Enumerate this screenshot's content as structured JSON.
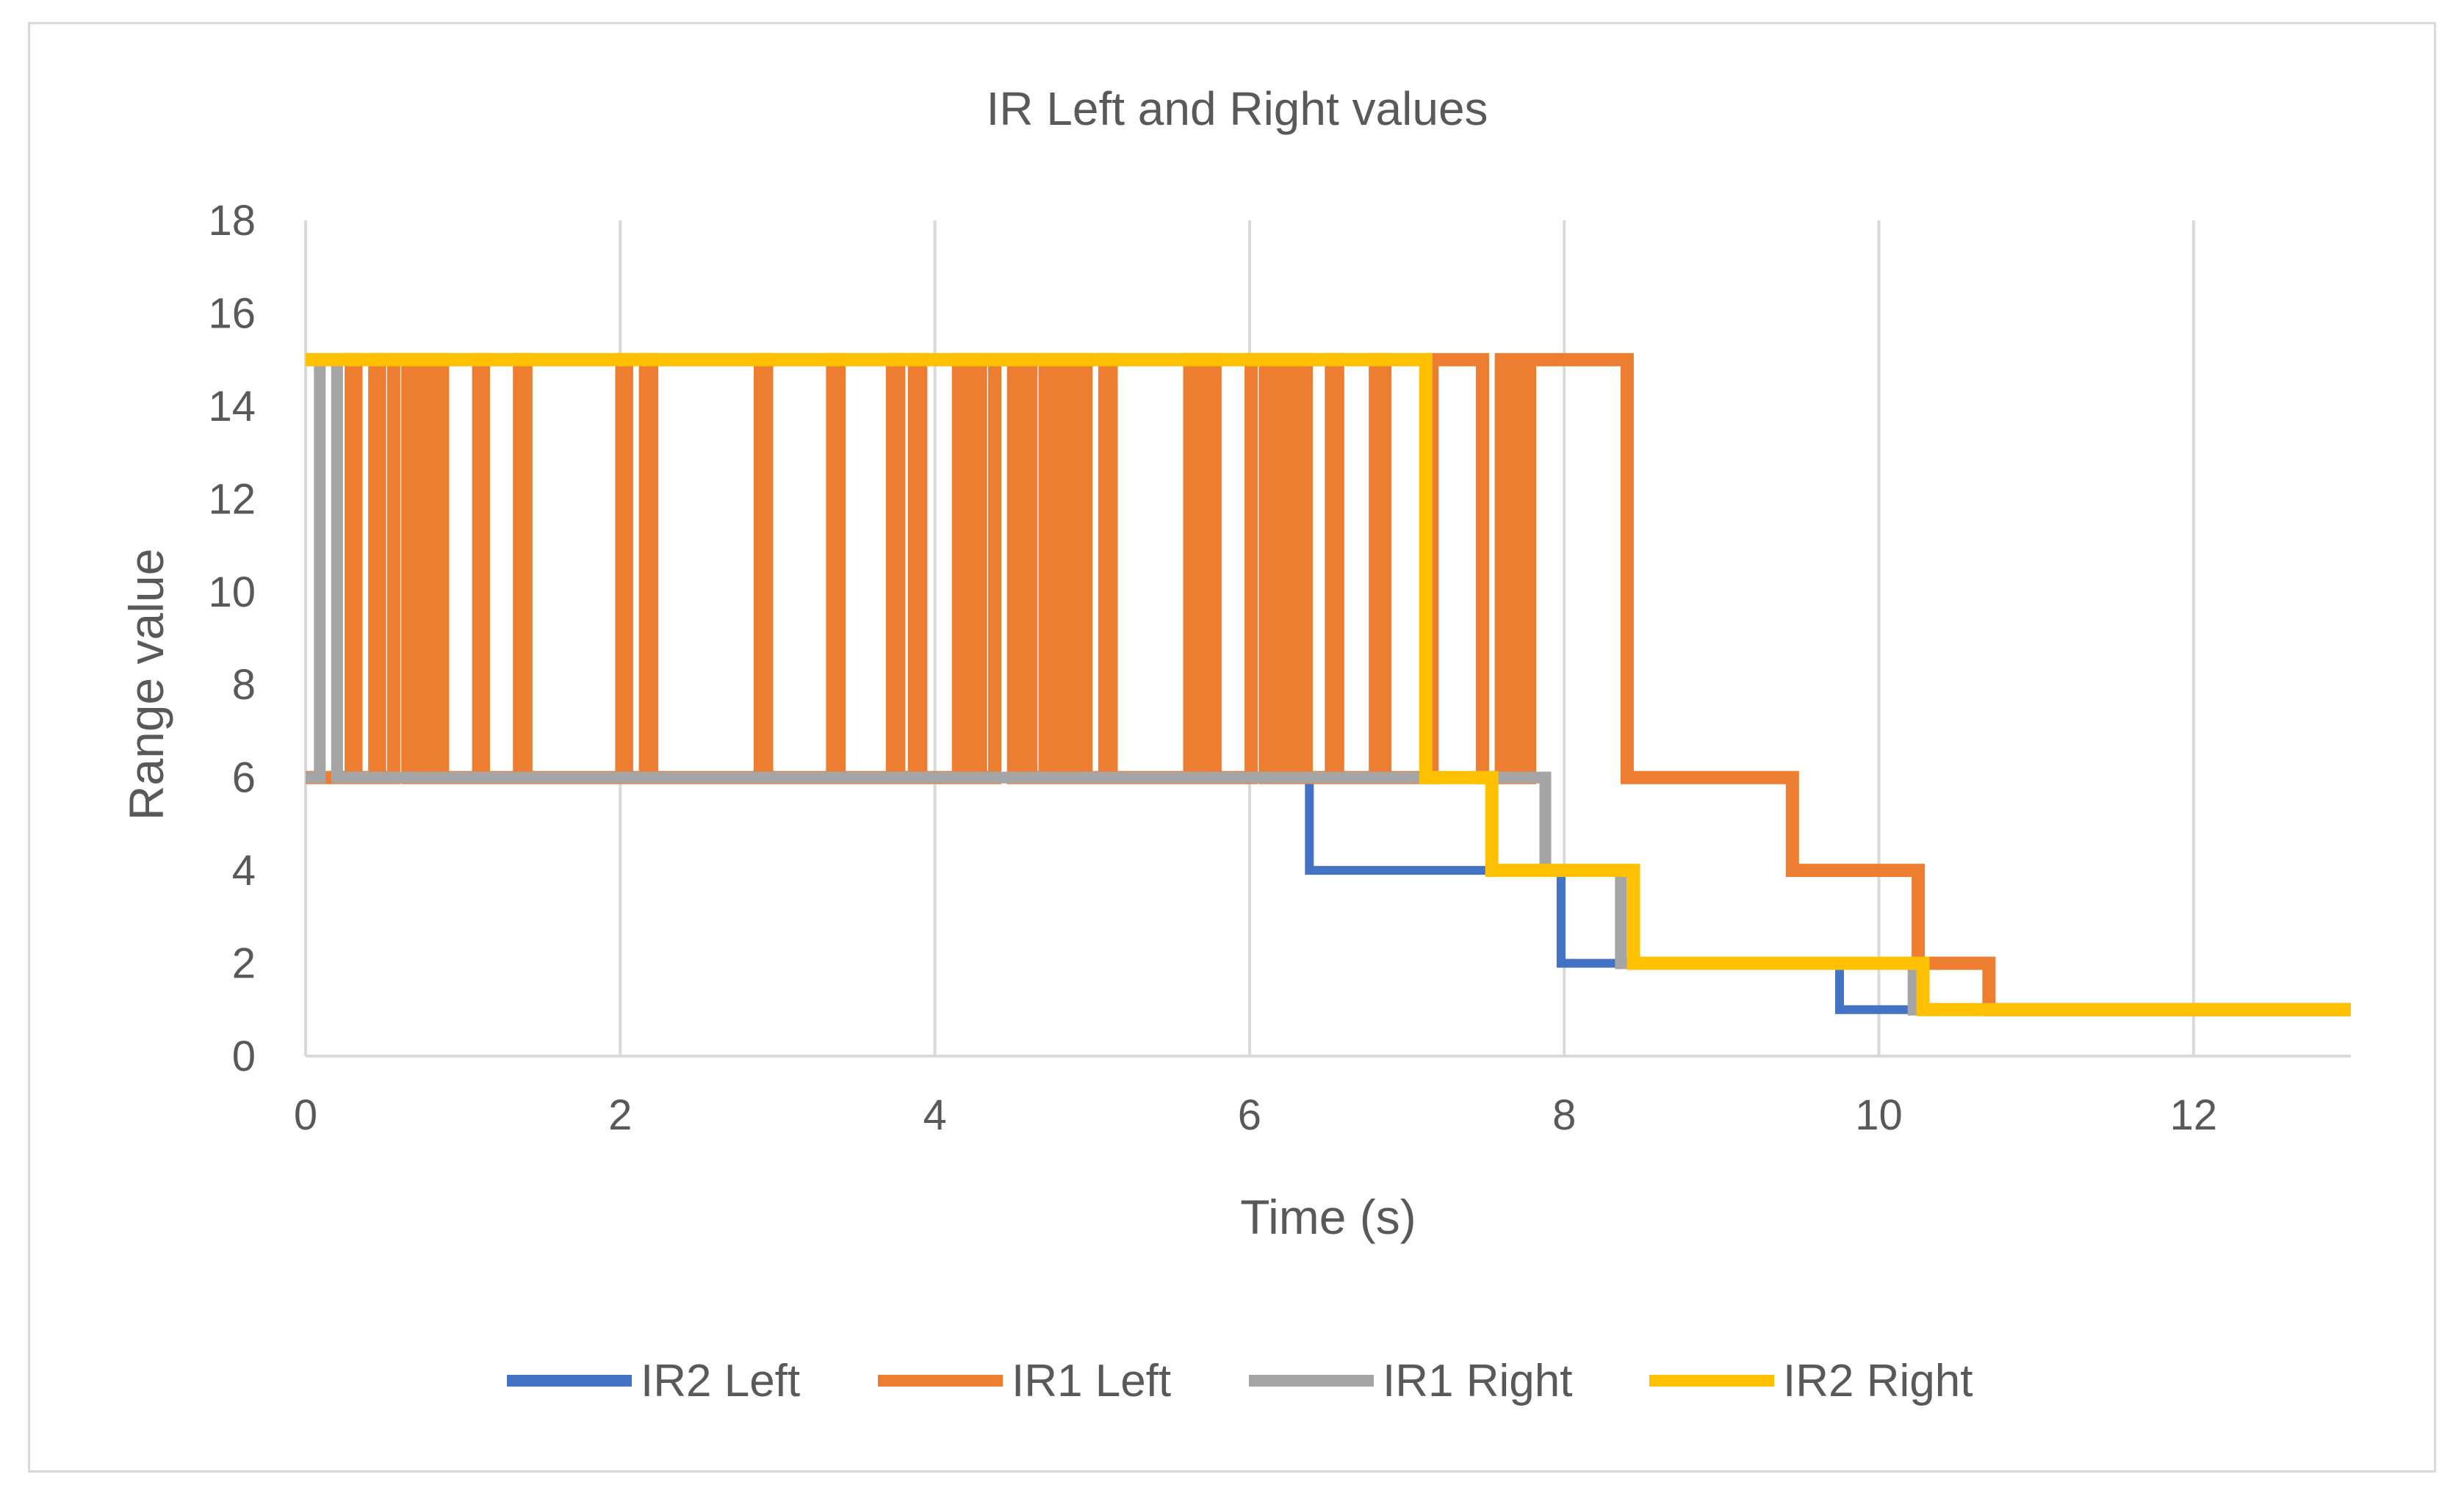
{
  "chart_data": {
    "type": "line",
    "title": "IR Left and Right values",
    "xlabel": "Time (s)",
    "ylabel": "Range value",
    "xlim": [
      0,
      13
    ],
    "ylim": [
      0,
      18
    ],
    "xticks": [
      0,
      2,
      4,
      6,
      8,
      10,
      12
    ],
    "yticks": [
      0,
      2,
      4,
      6,
      8,
      10,
      12,
      14,
      16,
      18
    ],
    "grid": "vertical",
    "legend_position": "bottom",
    "series": [
      {
        "name": "IR2 Left",
        "color": "#4472c4",
        "points": [
          [
            0,
            6
          ],
          [
            4.53,
            6
          ],
          [
            4.53,
            15
          ],
          [
            4.54,
            15
          ],
          [
            4.54,
            6
          ],
          [
            6.38,
            6
          ],
          [
            6.38,
            4
          ],
          [
            7.98,
            4
          ],
          [
            7.98,
            2
          ],
          [
            9.75,
            2
          ],
          [
            9.75,
            1
          ],
          [
            10.25,
            1
          ],
          [
            10.25,
            1
          ],
          [
            13,
            1
          ]
        ]
      },
      {
        "name": "IR1 Left",
        "color": "#ed7d31",
        "points": [
          [
            0,
            6
          ],
          [
            0.29,
            6
          ],
          [
            0.29,
            15
          ],
          [
            0.32,
            15
          ],
          [
            0.32,
            6
          ],
          [
            0.44,
            6
          ],
          [
            0.44,
            15
          ],
          [
            0.47,
            15
          ],
          [
            0.47,
            6
          ],
          [
            0.56,
            6
          ],
          [
            0.56,
            15
          ],
          [
            0.65,
            15
          ],
          [
            0.65,
            6
          ],
          [
            0.7,
            6
          ],
          [
            0.7,
            15
          ],
          [
            0.75,
            15
          ],
          [
            0.75,
            6
          ],
          [
            0.81,
            6
          ],
          [
            0.81,
            15
          ],
          [
            0.87,
            15
          ],
          [
            0.87,
            6
          ],
          [
            1.1,
            6
          ],
          [
            1.1,
            15
          ],
          [
            1.13,
            15
          ],
          [
            1.13,
            6
          ],
          [
            1.36,
            6
          ],
          [
            1.36,
            15
          ],
          [
            1.4,
            15
          ],
          [
            1.4,
            6
          ],
          [
            2.01,
            6
          ],
          [
            2.01,
            15
          ],
          [
            2.04,
            15
          ],
          [
            2.04,
            6
          ],
          [
            2.16,
            6
          ],
          [
            2.16,
            15
          ],
          [
            2.2,
            15
          ],
          [
            2.2,
            6
          ],
          [
            2.89,
            6
          ],
          [
            2.89,
            15
          ],
          [
            2.93,
            15
          ],
          [
            2.93,
            6
          ],
          [
            3.35,
            6
          ],
          [
            3.35,
            15
          ],
          [
            3.39,
            15
          ],
          [
            3.39,
            6
          ],
          [
            3.73,
            6
          ],
          [
            3.73,
            15
          ],
          [
            3.77,
            15
          ],
          [
            3.77,
            6
          ],
          [
            3.87,
            6
          ],
          [
            3.87,
            15
          ],
          [
            3.91,
            15
          ],
          [
            3.91,
            6
          ],
          [
            4.15,
            6
          ],
          [
            4.15,
            15
          ],
          [
            4.19,
            15
          ],
          [
            4.19,
            6
          ],
          [
            4.25,
            6
          ],
          [
            4.25,
            15
          ],
          [
            4.29,
            15
          ],
          [
            4.29,
            6
          ],
          [
            4.38,
            6
          ],
          [
            4.38,
            15
          ],
          [
            4.5,
            15
          ],
          [
            4.5,
            6
          ],
          [
            4.57,
            6
          ],
          [
            4.57,
            15
          ],
          [
            4.61,
            15
          ],
          [
            4.61,
            6
          ],
          [
            4.7,
            6
          ],
          [
            4.7,
            15
          ],
          [
            4.74,
            15
          ],
          [
            4.74,
            6
          ],
          [
            4.81,
            6
          ],
          [
            4.81,
            15
          ],
          [
            4.85,
            15
          ],
          [
            4.85,
            6
          ],
          [
            4.92,
            6
          ],
          [
            4.92,
            15
          ],
          [
            4.96,
            15
          ],
          [
            4.96,
            6
          ],
          [
            5.08,
            6
          ],
          [
            5.08,
            15
          ],
          [
            5.12,
            15
          ],
          [
            5.12,
            6
          ],
          [
            5.62,
            6
          ],
          [
            5.62,
            15
          ],
          [
            5.66,
            15
          ],
          [
            5.66,
            6
          ],
          [
            5.74,
            6
          ],
          [
            5.74,
            15
          ],
          [
            5.78,
            15
          ],
          [
            5.78,
            6
          ],
          [
            6.01,
            6
          ],
          [
            6.01,
            15
          ],
          [
            6.1,
            15
          ],
          [
            6.1,
            6
          ],
          [
            6.16,
            6
          ],
          [
            6.16,
            15
          ],
          [
            6.2,
            15
          ],
          [
            6.2,
            6
          ],
          [
            6.28,
            6
          ],
          [
            6.28,
            15
          ],
          [
            6.36,
            15
          ],
          [
            6.36,
            6
          ],
          [
            6.52,
            6
          ],
          [
            6.52,
            15
          ],
          [
            6.56,
            15
          ],
          [
            6.56,
            6
          ],
          [
            6.8,
            6
          ],
          [
            6.8,
            15
          ],
          [
            6.86,
            15
          ],
          [
            6.86,
            6
          ],
          [
            7.16,
            6
          ],
          [
            7.16,
            15
          ],
          [
            7.48,
            15
          ],
          [
            7.48,
            6
          ],
          [
            7.6,
            6
          ],
          [
            7.6,
            15
          ],
          [
            7.66,
            15
          ],
          [
            7.66,
            6
          ],
          [
            7.7,
            6
          ],
          [
            7.7,
            15
          ],
          [
            7.76,
            15
          ],
          [
            7.76,
            6
          ],
          [
            7.78,
            6
          ],
          [
            7.78,
            15
          ],
          [
            8.4,
            15
          ],
          [
            8.4,
            6
          ],
          [
            9.45,
            6
          ],
          [
            9.45,
            4
          ],
          [
            10.25,
            4
          ],
          [
            10.25,
            2
          ],
          [
            10.7,
            2
          ],
          [
            10.7,
            1
          ],
          [
            13,
            1
          ]
        ]
      },
      {
        "name": "IR1 Right",
        "color": "#a5a5a5",
        "points": [
          [
            0,
            6
          ],
          [
            0.09,
            6
          ],
          [
            0.09,
            15
          ],
          [
            0.2,
            15
          ],
          [
            0.2,
            6
          ],
          [
            7.88,
            6
          ],
          [
            7.88,
            4
          ],
          [
            8.36,
            4
          ],
          [
            8.36,
            2
          ],
          [
            10.22,
            2
          ],
          [
            10.22,
            1
          ],
          [
            13,
            1
          ]
        ]
      },
      {
        "name": "IR2 Right",
        "color": "#ffc000",
        "points": [
          [
            0,
            15
          ],
          [
            7.12,
            15
          ],
          [
            7.12,
            6
          ],
          [
            7.54,
            6
          ],
          [
            7.54,
            4
          ],
          [
            8.44,
            4
          ],
          [
            8.44,
            2
          ],
          [
            10.28,
            2
          ],
          [
            10.28,
            1
          ],
          [
            13,
            1
          ]
        ]
      }
    ]
  }
}
